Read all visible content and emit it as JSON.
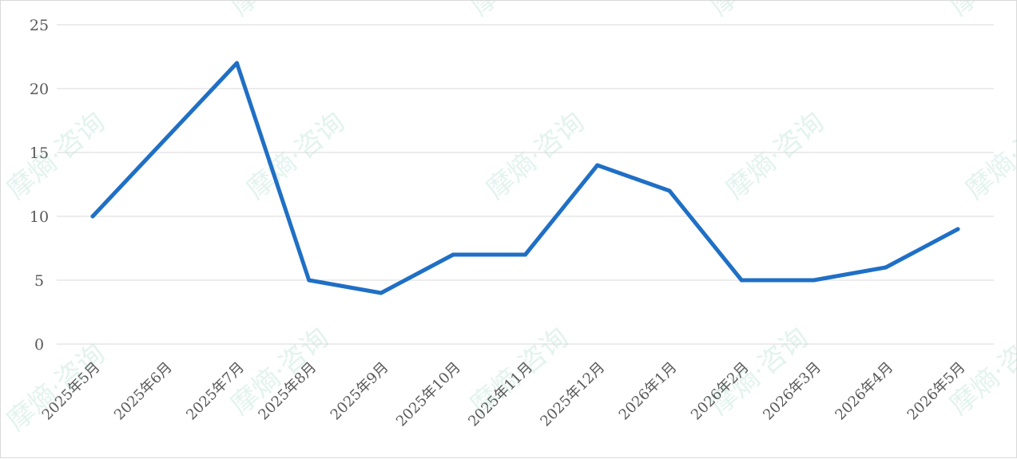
{
  "watermark": {
    "text": "摩熵·咨询",
    "color": "#7ecbb7"
  },
  "chart_data": {
    "type": "line",
    "title": "",
    "xlabel": "",
    "ylabel": "",
    "categories": [
      "2025年5月",
      "2025年6月",
      "2025年7月",
      "2025年8月",
      "2025年9月",
      "2025年10月",
      "2025年11月",
      "2025年12月",
      "2026年1月",
      "2026年2月",
      "2026年3月",
      "2026年4月",
      "2026年5月"
    ],
    "series": [
      {
        "values": [
          10,
          16,
          22,
          5,
          4,
          7,
          7,
          14,
          12,
          5,
          5,
          6,
          9
        ],
        "color": "#1f6fc5"
      }
    ],
    "ylim": [
      0,
      25
    ],
    "yticks": [
      0,
      5,
      10,
      15,
      20,
      25
    ],
    "grid": true,
    "legend": "none"
  }
}
